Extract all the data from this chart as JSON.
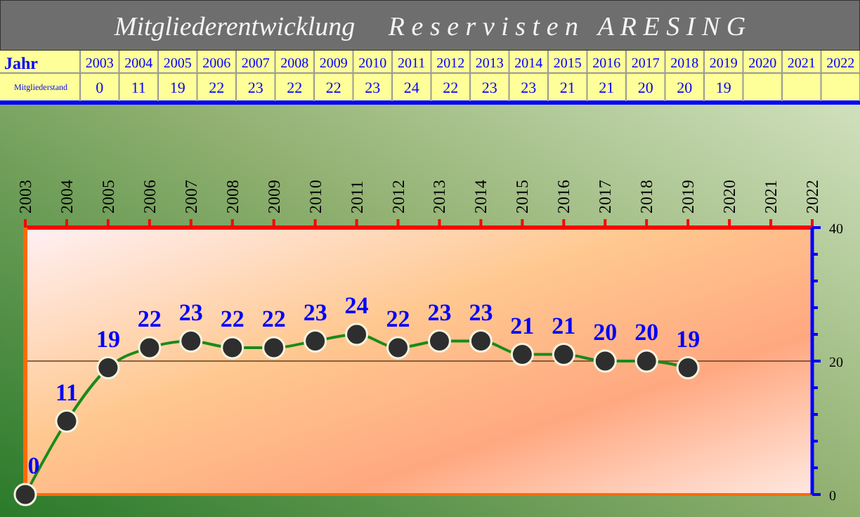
{
  "chart_data": {
    "type": "line",
    "title": "Mitgliederentwicklung     R e s e r v i s t e n   A R E S I N G",
    "categories": [
      "2003",
      "2004",
      "2005",
      "2006",
      "2007",
      "2008",
      "2009",
      "2010",
      "2011",
      "2012",
      "2013",
      "2014",
      "2015",
      "2016",
      "2017",
      "2018",
      "2019",
      "2020",
      "2021",
      "2022"
    ],
    "series": [
      {
        "color": "#1a8a1a",
        "values": [
          0,
          11,
          19,
          22,
          23,
          22,
          22,
          23,
          24,
          22,
          23,
          23,
          21,
          21,
          20,
          20,
          19,
          null,
          null,
          null
        ]
      }
    ],
    "ref_lines": [
      {
        "axis": "y",
        "value": 20,
        "color": "#6b3a1a"
      }
    ],
    "ylim": [
      0,
      40
    ],
    "yticks": [
      0,
      {
        "value": 4,
        "label": null
      },
      {
        "value": 8,
        "label": null
      },
      {
        "value": 12,
        "label": null
      },
      {
        "value": 16,
        "label": null
      },
      20,
      {
        "value": 24,
        "label": null
      },
      {
        "value": 28,
        "label": null
      },
      {
        "value": 32,
        "label": null
      },
      {
        "value": 36,
        "label": null
      },
      40
    ],
    "marker": "circle",
    "data_labels": true,
    "annotations": [
      "Jahr",
      "Mitgliederstand",
      "0",
      "11",
      "19",
      "22",
      "23",
      "22",
      "22",
      "23",
      "24",
      "22",
      "23",
      "23",
      "21",
      "21",
      "20",
      "20",
      "19"
    ]
  }
}
